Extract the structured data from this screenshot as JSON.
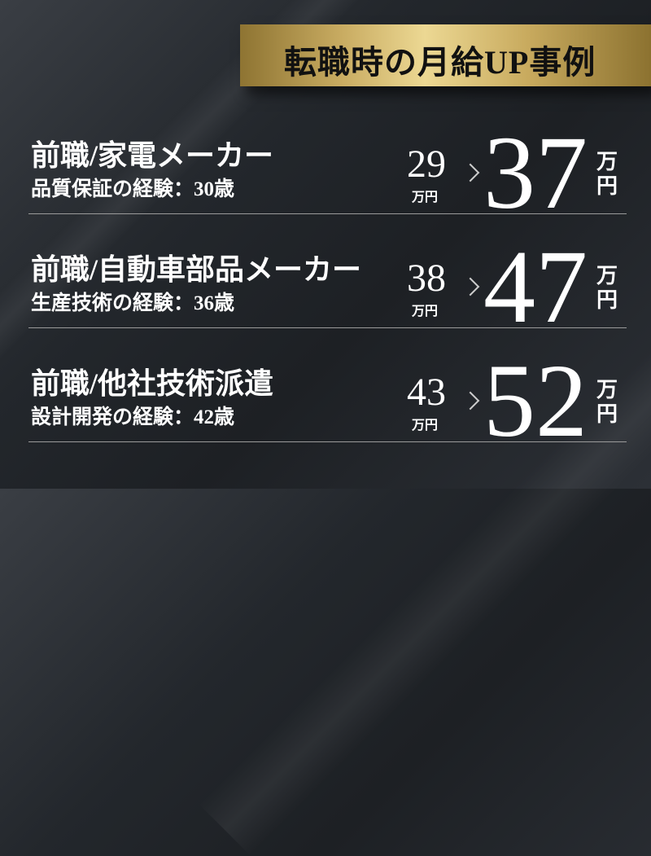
{
  "header": {
    "title": "転職時の月給UP事例"
  },
  "colors": {
    "banner_gold": "#ecd893",
    "background": "#23272c",
    "text": "#ffffff"
  },
  "cases": [
    {
      "title": "前職/家電メーカー",
      "subtitle": "品質保証の経験：30歳",
      "before": "29",
      "before_unit": "万円",
      "arrow": "chevron-right-icon",
      "after": "37",
      "after_unit": "万円"
    },
    {
      "title": "前職/自動車部品メーカー",
      "subtitle": "生産技術の経験：36歳",
      "before": "38",
      "before_unit": "万円",
      "arrow": "chevron-right-icon",
      "after": "47",
      "after_unit": "万円"
    },
    {
      "title": "前職/他社技術派遣",
      "subtitle": "設計開発の経験：42歳",
      "before": "43",
      "before_unit": "万円",
      "arrow": "chevron-right-icon",
      "after": "52",
      "after_unit": "万円"
    }
  ]
}
